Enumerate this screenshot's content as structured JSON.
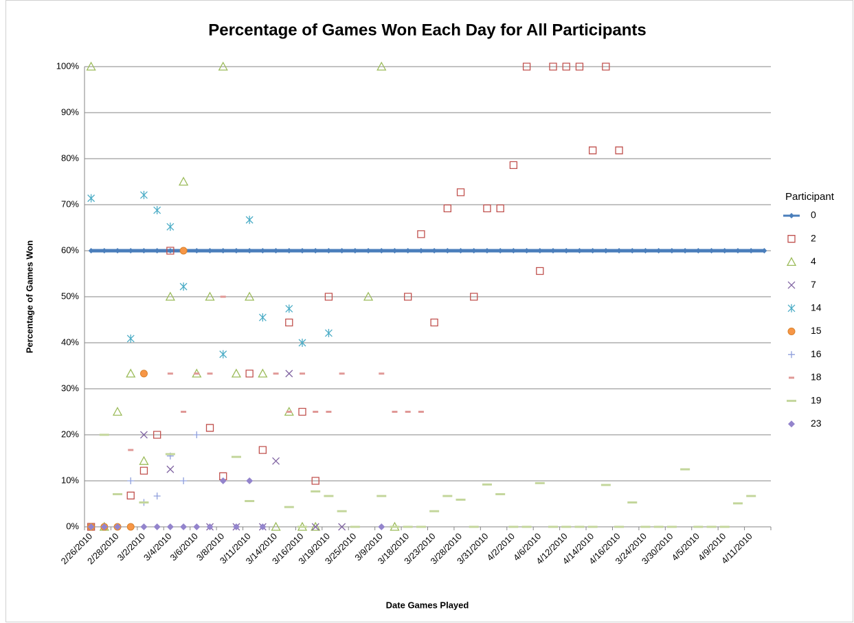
{
  "chart_data": {
    "type": "scatter",
    "title": "Percentage of Games Won Each Day for All Participants",
    "x_label": "Date Games Played",
    "y_label": "Percentage of Games Won",
    "legend_title": "Participant",
    "legend": "right",
    "grid": true,
    "categories": [
      "2/26/2010",
      null,
      "2/28/2010",
      null,
      "3/2/2010",
      null,
      "3/4/2010",
      null,
      "3/6/2010",
      null,
      "3/8/2010",
      null,
      "3/11/2010",
      null,
      "3/14/2010",
      null,
      "3/16/2010",
      null,
      "3/19/2010",
      null,
      "3/25/2010",
      null,
      "3/9/2010",
      null,
      "3/18/2010",
      null,
      "3/23/2010",
      null,
      "3/28/2010",
      null,
      "3/31/2010",
      null,
      "4/2/2010",
      null,
      "4/6/2010",
      null,
      "4/12/2010",
      null,
      "4/14/2010",
      null,
      "4/16/2010",
      null,
      "3/24/2010",
      null,
      "3/30/2010",
      null,
      "4/5/2010",
      null,
      "4/9/2010",
      null,
      "4/11/2010",
      null
    ],
    "ylim": [
      0,
      100
    ],
    "yticks": [
      {
        "value": 0,
        "label": "0%"
      },
      {
        "value": 10,
        "label": "10%"
      },
      {
        "value": 20,
        "label": "20%"
      },
      {
        "value": 30,
        "label": "30%"
      },
      {
        "value": 40,
        "label": "40%"
      },
      {
        "value": 50,
        "label": "50%"
      },
      {
        "value": 60,
        "label": "60%"
      },
      {
        "value": 70,
        "label": "70%"
      },
      {
        "value": 80,
        "label": "80%"
      },
      {
        "value": 90,
        "label": "90%"
      },
      {
        "value": 100,
        "label": "100%"
      }
    ],
    "series": [
      {
        "name": "0",
        "color": "#4a7ebb",
        "marker": "diamond",
        "line": true,
        "values": [
          60,
          60,
          60,
          60,
          60,
          60,
          60,
          60,
          60,
          60,
          60,
          60,
          60,
          60,
          60,
          60,
          60,
          60,
          60,
          60,
          60,
          60,
          60,
          60,
          60,
          60,
          60,
          60,
          60,
          60,
          60,
          60,
          60,
          60,
          60,
          60,
          60,
          60,
          60,
          60,
          60,
          60,
          60,
          60,
          60,
          60,
          60,
          60,
          60,
          60,
          60,
          60
        ]
      },
      {
        "name": "2",
        "color": "#c0504d",
        "marker": "square",
        "values": [
          0,
          null,
          null,
          6.8,
          12.2,
          20,
          60,
          null,
          null,
          21.5,
          11,
          null,
          33.3,
          16.7,
          null,
          44.4,
          25,
          10,
          50,
          null,
          null,
          null,
          null,
          null,
          50,
          63.6,
          44.4,
          69.2,
          72.7,
          50,
          69.2,
          69.2,
          78.6,
          100,
          55.6,
          100,
          100,
          100,
          81.8,
          100,
          81.8,
          null,
          null,
          null,
          null,
          null,
          null,
          null,
          null,
          null,
          null,
          null
        ]
      },
      {
        "name": "4",
        "color": "#9bbb59",
        "marker": "triangle",
        "values": [
          100,
          0,
          25,
          33.3,
          14.3,
          null,
          50,
          75,
          33.3,
          50,
          100,
          33.3,
          50,
          33.3,
          0,
          25,
          0,
          0,
          null,
          null,
          null,
          50,
          100,
          0,
          null,
          null,
          null,
          null,
          null,
          null,
          null,
          null,
          null,
          null,
          null,
          null,
          null,
          null,
          null,
          null,
          null,
          null,
          null,
          null,
          null,
          null,
          null,
          null,
          null,
          null,
          null,
          null
        ]
      },
      {
        "name": "7",
        "color": "#8064a2",
        "marker": "x",
        "values": [
          null,
          null,
          null,
          null,
          20,
          null,
          12.5,
          null,
          null,
          0,
          null,
          0,
          null,
          0,
          14.3,
          33.3,
          null,
          0,
          null,
          0,
          null,
          null,
          null,
          null,
          null,
          null,
          null,
          null,
          null,
          null,
          null,
          null,
          null,
          null,
          null,
          null,
          null,
          null,
          null,
          null,
          null,
          null,
          null,
          null,
          null,
          null,
          null,
          null,
          null,
          null,
          null,
          null
        ]
      },
      {
        "name": "14",
        "color": "#4bacc6",
        "marker": "star",
        "values": [
          71.4,
          null,
          null,
          40.9,
          72.1,
          68.8,
          65.2,
          52.2,
          null,
          null,
          37.5,
          null,
          66.7,
          45.5,
          null,
          47.4,
          40,
          null,
          42.1,
          null,
          null,
          null,
          null,
          null,
          null,
          null,
          null,
          null,
          null,
          null,
          null,
          null,
          null,
          null,
          null,
          null,
          null,
          null,
          null,
          null,
          null,
          null,
          null,
          null,
          null,
          null,
          null,
          null,
          null,
          null,
          null,
          null
        ]
      },
      {
        "name": "15",
        "color": "#f79646",
        "marker": "circle",
        "values": [
          0,
          0,
          0,
          0,
          33.3,
          null,
          null,
          60,
          null,
          null,
          null,
          null,
          null,
          null,
          null,
          null,
          null,
          null,
          null,
          null,
          null,
          null,
          null,
          null,
          null,
          null,
          null,
          null,
          null,
          null,
          null,
          null,
          null,
          null,
          null,
          null,
          null,
          null,
          null,
          null,
          null,
          null,
          null,
          null,
          null,
          null,
          null,
          null,
          null,
          null,
          null,
          null
        ]
      },
      {
        "name": "16",
        "color": "#8f9fdc",
        "marker": "plus",
        "values": [
          null,
          null,
          null,
          10,
          5.3,
          6.7,
          15.4,
          10,
          20,
          null,
          null,
          null,
          null,
          null,
          null,
          null,
          null,
          null,
          null,
          null,
          null,
          null,
          null,
          null,
          null,
          null,
          null,
          null,
          null,
          null,
          null,
          null,
          null,
          null,
          null,
          null,
          null,
          null,
          null,
          null,
          null,
          null,
          null,
          null,
          null,
          null,
          null,
          null,
          null,
          null,
          null,
          null
        ]
      },
      {
        "name": "18",
        "color": "#e09896",
        "marker": "dash",
        "values": [
          null,
          null,
          null,
          16.7,
          null,
          null,
          33.3,
          25,
          33.3,
          33.3,
          50,
          null,
          null,
          null,
          33.3,
          25,
          33.3,
          25,
          25,
          33.3,
          null,
          null,
          33.3,
          25,
          25,
          25,
          null,
          null,
          null,
          null,
          null,
          null,
          null,
          null,
          null,
          null,
          null,
          null,
          null,
          null,
          null,
          null,
          null,
          null,
          null,
          null,
          null,
          null,
          null,
          null,
          null,
          null
        ]
      },
      {
        "name": "19",
        "color": "#c3d69b",
        "marker": "long-dash",
        "values": [
          null,
          20,
          7.1,
          null,
          5.3,
          null,
          15.8,
          null,
          null,
          null,
          null,
          15.2,
          5.6,
          null,
          null,
          4.3,
          0,
          7.7,
          6.7,
          3.4,
          0,
          null,
          6.7,
          0,
          0,
          0,
          3.4,
          6.7,
          5.9,
          0,
          9.2,
          7.1,
          0,
          0,
          9.5,
          0,
          0,
          0,
          0,
          9.1,
          0,
          5.3,
          0,
          0,
          0,
          12.5,
          0,
          0,
          0,
          5.1,
          6.7,
          null
        ]
      },
      {
        "name": "23",
        "color": "#9384cc",
        "marker": "diamond",
        "values": [
          0,
          0,
          0,
          null,
          0,
          0,
          0,
          0,
          0,
          0,
          10,
          0,
          10,
          0,
          null,
          null,
          null,
          null,
          null,
          null,
          null,
          null,
          0,
          null,
          null,
          null,
          null,
          null,
          null,
          null,
          null,
          null,
          null,
          null,
          null,
          null,
          null,
          null,
          null,
          null,
          null,
          null,
          null,
          null,
          null,
          null,
          null,
          null,
          null,
          null,
          null,
          null
        ]
      }
    ]
  }
}
